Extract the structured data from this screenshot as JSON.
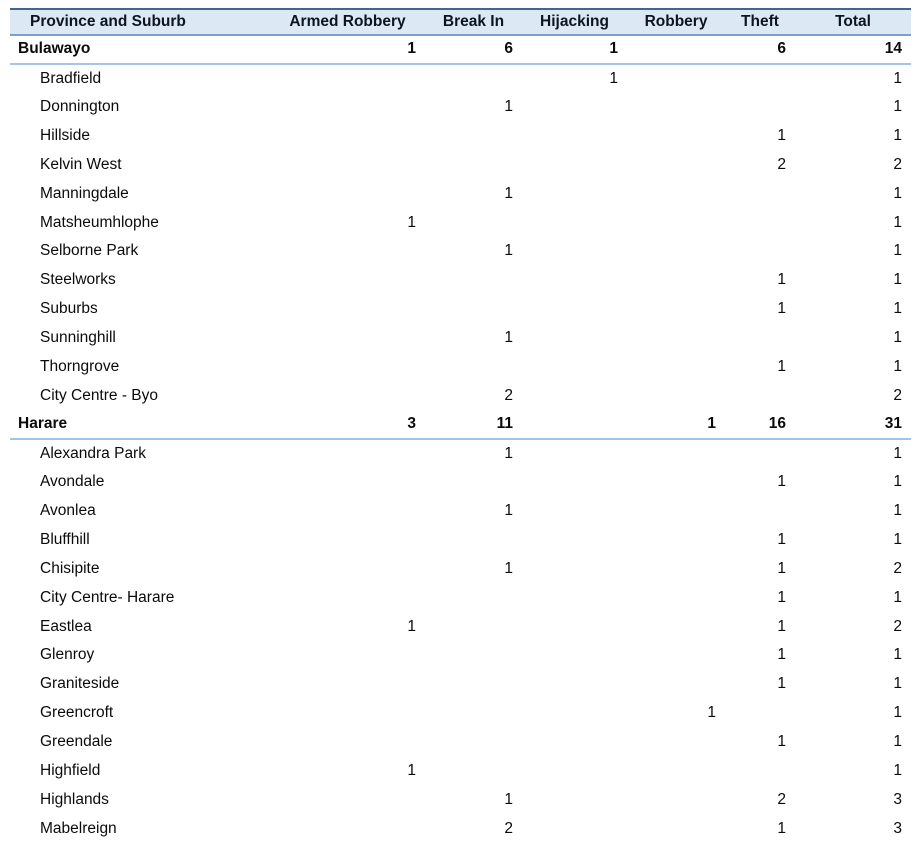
{
  "colors": {
    "header_fill": "#dce9f5",
    "header_top_border": "#3f6593",
    "header_bottom_border": "#7aa1ca",
    "subtotal_rule": "#a6c5e4",
    "text": "#0b0b0b",
    "background": "#ffffff"
  },
  "table": {
    "columns": [
      {
        "key": "name",
        "label": "Province and Suburb"
      },
      {
        "key": "armed_robbery",
        "label": "Armed Robbery"
      },
      {
        "key": "break_in",
        "label": "Break In"
      },
      {
        "key": "hijacking",
        "label": "Hijacking"
      },
      {
        "key": "robbery",
        "label": "Robbery"
      },
      {
        "key": "theft",
        "label": "Theft"
      },
      {
        "key": "total",
        "label": "Total"
      }
    ],
    "rows": [
      {
        "name": "Bulawayo",
        "type": "province",
        "values": [
          1,
          6,
          1,
          null,
          6,
          14
        ]
      },
      {
        "name": "Bradfield",
        "type": "suburb",
        "values": [
          null,
          null,
          1,
          null,
          null,
          1
        ]
      },
      {
        "name": "Donnington",
        "type": "suburb",
        "values": [
          null,
          1,
          null,
          null,
          null,
          1
        ]
      },
      {
        "name": "Hillside",
        "type": "suburb",
        "values": [
          null,
          null,
          null,
          null,
          1,
          1
        ]
      },
      {
        "name": "Kelvin West",
        "type": "suburb",
        "values": [
          null,
          null,
          null,
          null,
          2,
          2
        ]
      },
      {
        "name": "Manningdale",
        "type": "suburb",
        "values": [
          null,
          1,
          null,
          null,
          null,
          1
        ]
      },
      {
        "name": "Matsheumhlophe",
        "type": "suburb",
        "values": [
          1,
          null,
          null,
          null,
          null,
          1
        ]
      },
      {
        "name": "Selborne Park",
        "type": "suburb",
        "values": [
          null,
          1,
          null,
          null,
          null,
          1
        ]
      },
      {
        "name": "Steelworks",
        "type": "suburb",
        "values": [
          null,
          null,
          null,
          null,
          1,
          1
        ]
      },
      {
        "name": "Suburbs",
        "type": "suburb",
        "values": [
          null,
          null,
          null,
          null,
          1,
          1
        ]
      },
      {
        "name": "Sunninghill",
        "type": "suburb",
        "values": [
          null,
          1,
          null,
          null,
          null,
          1
        ]
      },
      {
        "name": "Thorngrove",
        "type": "suburb",
        "values": [
          null,
          null,
          null,
          null,
          1,
          1
        ]
      },
      {
        "name": "City Centre - Byo",
        "type": "suburb",
        "values": [
          null,
          2,
          null,
          null,
          null,
          2
        ]
      },
      {
        "name": "Harare",
        "type": "province",
        "values": [
          3,
          11,
          null,
          1,
          16,
          31
        ]
      },
      {
        "name": "Alexandra Park",
        "type": "suburb",
        "values": [
          null,
          1,
          null,
          null,
          null,
          1
        ]
      },
      {
        "name": "Avondale",
        "type": "suburb",
        "values": [
          null,
          null,
          null,
          null,
          1,
          1
        ]
      },
      {
        "name": "Avonlea",
        "type": "suburb",
        "values": [
          null,
          1,
          null,
          null,
          null,
          1
        ]
      },
      {
        "name": "Bluffhill",
        "type": "suburb",
        "values": [
          null,
          null,
          null,
          null,
          1,
          1
        ]
      },
      {
        "name": "Chisipite",
        "type": "suburb",
        "values": [
          null,
          1,
          null,
          null,
          1,
          2
        ]
      },
      {
        "name": "City Centre- Harare",
        "type": "suburb",
        "values": [
          null,
          null,
          null,
          null,
          1,
          1
        ]
      },
      {
        "name": "Eastlea",
        "type": "suburb",
        "values": [
          1,
          null,
          null,
          null,
          1,
          2
        ]
      },
      {
        "name": "Glenroy",
        "type": "suburb",
        "values": [
          null,
          null,
          null,
          null,
          1,
          1
        ]
      },
      {
        "name": "Graniteside",
        "type": "suburb",
        "values": [
          null,
          null,
          null,
          null,
          1,
          1
        ]
      },
      {
        "name": "Greencroft",
        "type": "suburb",
        "values": [
          null,
          null,
          null,
          1,
          null,
          1
        ]
      },
      {
        "name": "Greendale",
        "type": "suburb",
        "values": [
          null,
          null,
          null,
          null,
          1,
          1
        ]
      },
      {
        "name": "Highfield",
        "type": "suburb",
        "values": [
          1,
          null,
          null,
          null,
          null,
          1
        ]
      },
      {
        "name": "Highlands",
        "type": "suburb",
        "values": [
          null,
          1,
          null,
          null,
          2,
          3
        ]
      },
      {
        "name": "Mabelreign",
        "type": "suburb",
        "values": [
          null,
          2,
          null,
          null,
          1,
          3
        ]
      }
    ]
  }
}
